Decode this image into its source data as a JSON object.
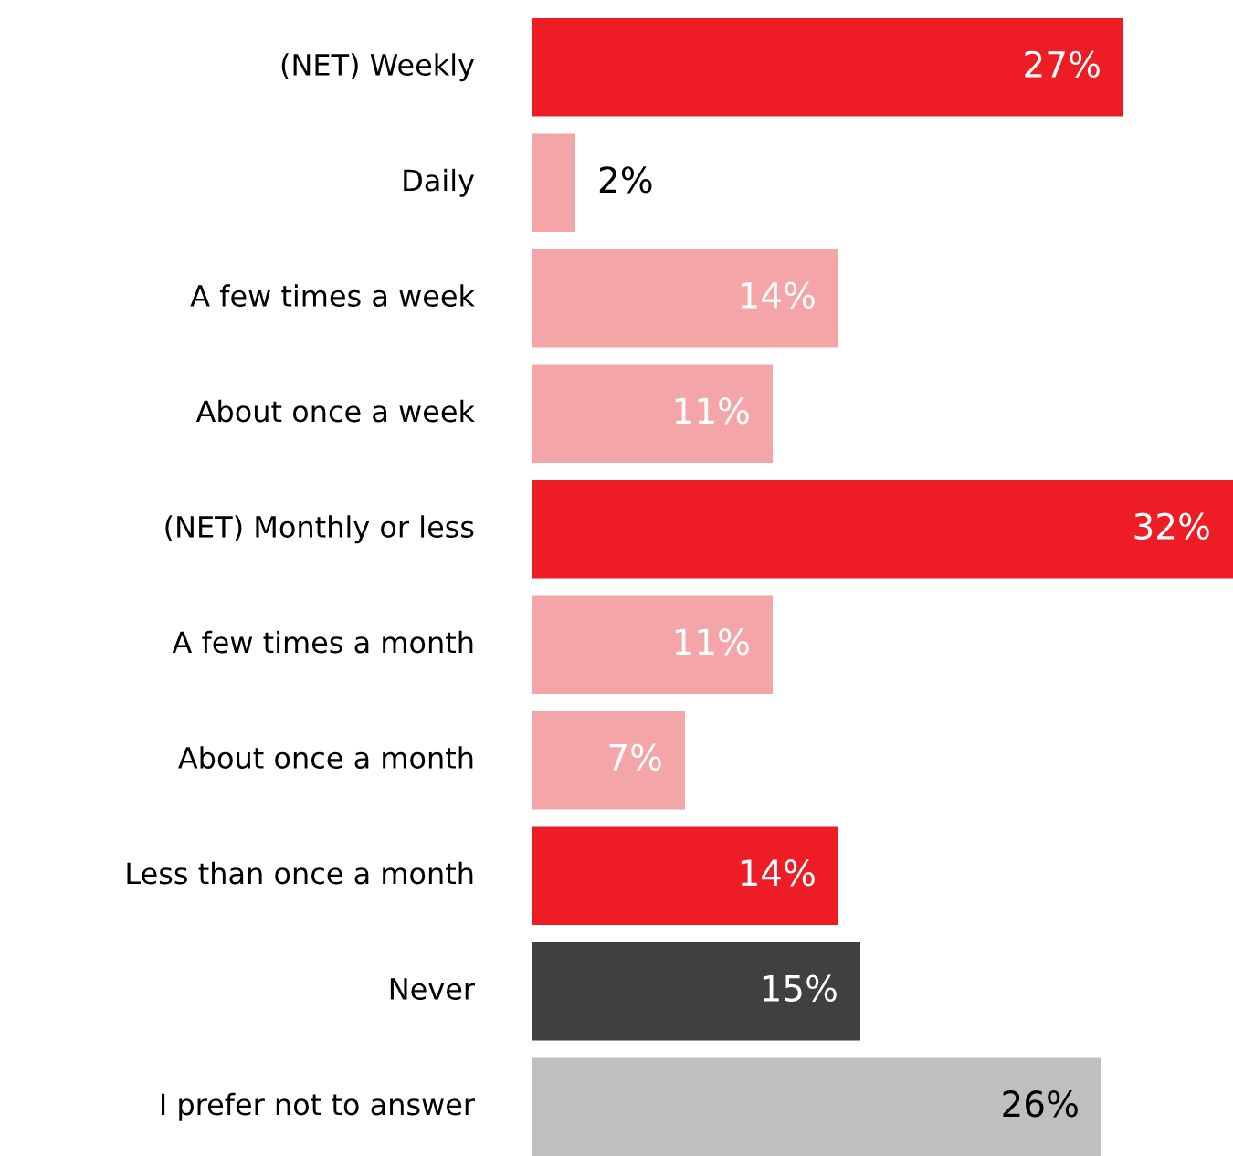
{
  "chart_data": {
    "type": "bar",
    "orientation": "horizontal",
    "categories": [
      "(NET) Weekly",
      "Daily",
      "A few times a week",
      "About once a week",
      "(NET) Monthly or less",
      "A few times a month",
      "About once a month",
      "Less than once a month",
      "Never",
      "I prefer not to answer"
    ],
    "values": [
      27,
      2,
      14,
      11,
      32,
      11,
      7,
      14,
      15,
      26
    ],
    "colors": [
      "#ee1c25",
      "#f4a5a8",
      "#f4a5a8",
      "#f4a5a8",
      "#ee1c25",
      "#f4a5a8",
      "#f4a5a8",
      "#ee1c25",
      "#404040",
      "#bfbfbf"
    ],
    "value_labels": [
      "27%",
      "2%",
      "14%",
      "11%",
      "32%",
      "11%",
      "7%",
      "14%",
      "15%",
      "26%"
    ],
    "legend": false
  }
}
